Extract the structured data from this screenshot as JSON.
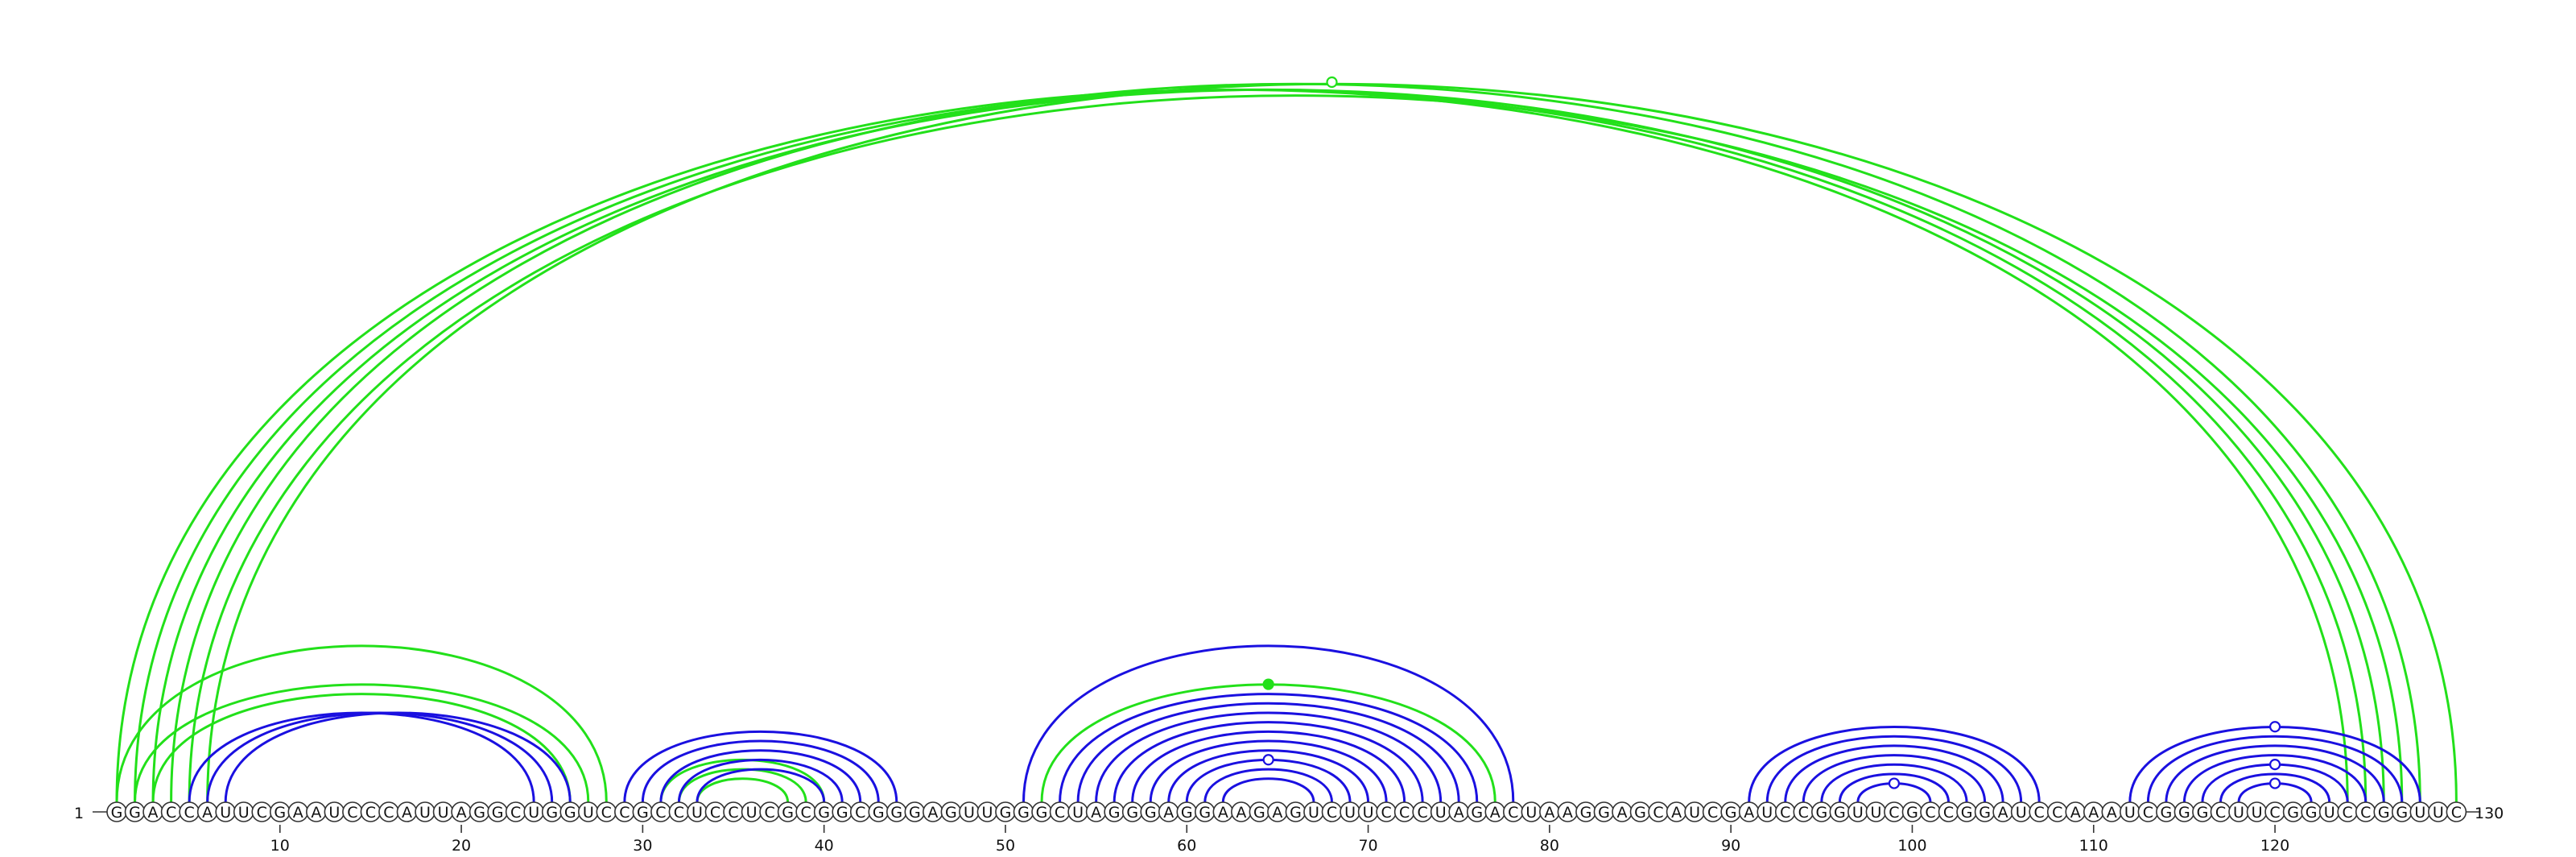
{
  "sequence": "GGACCAUUCGAAUCCCAUUAGGCUGGUCCGCCUCCUCGCGGCGGGAGUUGGGCUAGGGAGGAAGAGUCUUCCCUAGACUAAGGAGCAUCGAUCCGGUUCGCCGGAUCCAAAUCGGGCUUCGGUCCGGUUC",
  "start_label": "1",
  "end_label": "130",
  "ticks": [
    10,
    20,
    30,
    40,
    50,
    60,
    70,
    80,
    90,
    100,
    110,
    120
  ],
  "colors": {
    "blue": "#1a10e0",
    "green": "#22e01a"
  },
  "pairs": {
    "blue": [
      [
        5,
        24
      ],
      [
        6,
        25
      ],
      [
        7,
        26
      ],
      [
        29,
        44
      ],
      [
        30,
        43
      ],
      [
        31,
        42
      ],
      [
        32,
        41
      ],
      [
        33,
        40
      ],
      [
        51,
        78
      ],
      [
        53,
        76
      ],
      [
        54,
        75
      ],
      [
        55,
        74
      ],
      [
        56,
        73
      ],
      [
        57,
        72
      ],
      [
        58,
        71
      ],
      [
        59,
        70
      ],
      [
        60,
        69
      ],
      [
        61,
        68
      ],
      [
        62,
        67
      ],
      [
        91,
        107
      ],
      [
        92,
        106
      ],
      [
        93,
        105
      ],
      [
        94,
        104
      ],
      [
        95,
        103
      ],
      [
        96,
        102
      ],
      [
        97,
        101
      ],
      [
        112,
        128
      ],
      [
        113,
        127
      ],
      [
        114,
        126
      ],
      [
        115,
        125
      ],
      [
        116,
        124
      ],
      [
        117,
        123
      ],
      [
        118,
        122
      ]
    ],
    "green": [
      [
        1,
        124
      ],
      [
        2,
        125
      ],
      [
        3,
        126
      ],
      [
        4,
        128
      ],
      [
        5,
        127
      ],
      [
        6,
        130
      ],
      [
        1,
        28
      ],
      [
        2,
        27
      ],
      [
        3,
        26
      ],
      [
        31,
        40
      ],
      [
        32,
        39
      ],
      [
        33,
        38
      ],
      [
        52,
        77
      ]
    ]
  },
  "markers": [
    {
      "i": 6,
      "j": 130,
      "color": "green",
      "filled": false
    },
    {
      "i": 52,
      "j": 77,
      "color": "green",
      "filled": true
    },
    {
      "i": 60,
      "j": 69,
      "color": "blue",
      "filled": false
    },
    {
      "i": 97,
      "j": 101,
      "color": "blue",
      "filled": false
    },
    {
      "i": 112,
      "j": 128,
      "color": "blue",
      "filled": false
    },
    {
      "i": 116,
      "j": 124,
      "color": "blue",
      "filled": false
    },
    {
      "i": 118,
      "j": 122,
      "color": "blue",
      "filled": false
    }
  ]
}
